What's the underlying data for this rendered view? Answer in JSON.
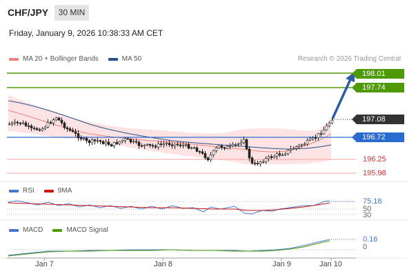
{
  "header": {
    "symbol": "CHF/JPY",
    "timeframe": "30 MIN",
    "datetime": "Friday, January 9, 2026 10:38:33 AM CET"
  },
  "legend_price": {
    "ma20": "MA 20 + Bollinger Bands",
    "ma50": "MA 50",
    "ma20_color": "#f08080",
    "ma50_color": "#2b4f8a"
  },
  "credit": "Research © 2026 Trading Central",
  "levels": {
    "r2": "198.01",
    "r1": "197.74",
    "last": "197.08",
    "pivot": "196.72",
    "s1": "196.25",
    "s2": "195.98",
    "resistance_color": "#4e9a06",
    "pivot_color": "#2a6bd1",
    "support_color": "#e05050"
  },
  "legend_rsi": {
    "rsi": "RSI",
    "ma": "9MA",
    "rsi_color": "#4477cc",
    "ma_color": "#cc1111"
  },
  "rsi_axis": {
    "v1": "75.18",
    "v2": "50",
    "v3": "30"
  },
  "legend_macd": {
    "macd": "MACD",
    "signal": "MACD Signal",
    "macd_color": "#4477cc",
    "signal_color": "#4e9a06"
  },
  "macd_axis": {
    "v1": "0.16",
    "v2": "0"
  },
  "xaxis": {
    "t1": "Jan 7",
    "t2": "Jan 8",
    "t3": "Jan 9",
    "t4": "Jan 10"
  },
  "chart_data": {
    "type": "candlestick",
    "x": [
      "Jan 7",
      "Jan 8",
      "Jan 9",
      "Jan 10"
    ],
    "last_price": 197.08,
    "resistance": [
      198.01,
      197.74
    ],
    "pivot": 196.72,
    "support": [
      196.25,
      195.98
    ],
    "rsi_last": 75.18,
    "rsi_levels": [
      70,
      50,
      30
    ],
    "macd_last": 0.16
  }
}
